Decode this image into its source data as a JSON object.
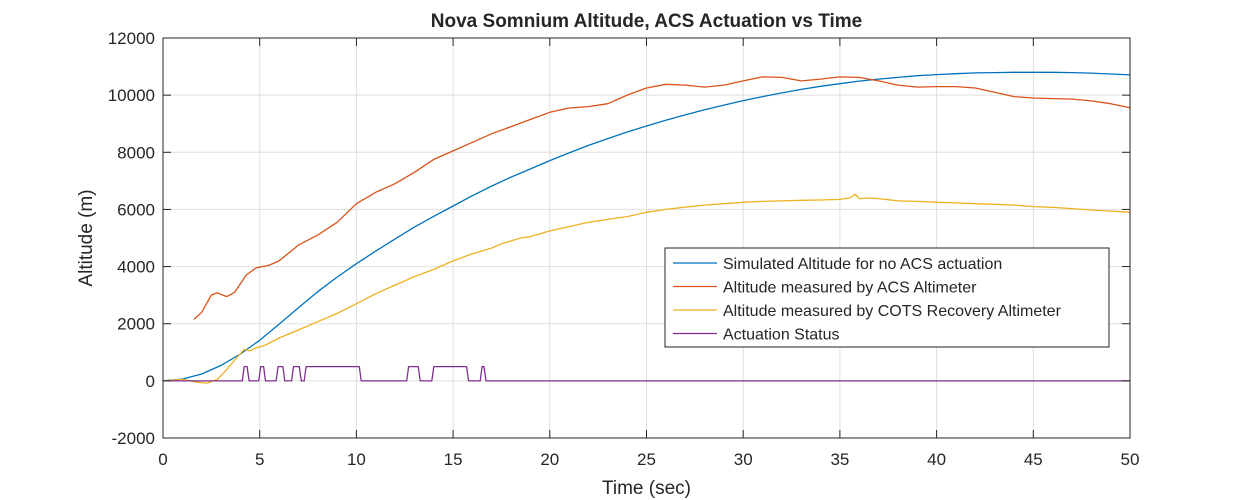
{
  "chart_data": {
    "type": "line",
    "title": "Nova Somnium Altitude, ACS Actuation vs Time",
    "xlabel": "Time (sec)",
    "ylabel": "Altitude (m)",
    "xlim": [
      0,
      50
    ],
    "ylim": [
      -2000,
      12000
    ],
    "xticks": [
      0,
      5,
      10,
      15,
      20,
      25,
      30,
      35,
      40,
      45,
      50
    ],
    "yticks": [
      -2000,
      0,
      2000,
      4000,
      6000,
      8000,
      10000,
      12000
    ],
    "xtick_labels": [
      "0",
      "5",
      "10",
      "15",
      "20",
      "25",
      "30",
      "35",
      "40",
      "45",
      "50"
    ],
    "ytick_labels": [
      "-2000",
      "0",
      "2000",
      "4000",
      "6000",
      "8000",
      "10000",
      "12000"
    ],
    "grid": true,
    "legend_position": "right-center",
    "series": [
      {
        "name": "Simulated Altitude for no ACS actuation",
        "color": "#0072BD",
        "points": [
          [
            0,
            0
          ],
          [
            1,
            60
          ],
          [
            2,
            240
          ],
          [
            3,
            540
          ],
          [
            4,
            940
          ],
          [
            5,
            1420
          ],
          [
            6,
            1980
          ],
          [
            7,
            2560
          ],
          [
            8,
            3120
          ],
          [
            9,
            3630
          ],
          [
            10,
            4100
          ],
          [
            11,
            4540
          ],
          [
            12,
            4970
          ],
          [
            13,
            5380
          ],
          [
            14,
            5760
          ],
          [
            15,
            6120
          ],
          [
            16,
            6480
          ],
          [
            17,
            6820
          ],
          [
            18,
            7130
          ],
          [
            19,
            7420
          ],
          [
            20,
            7710
          ],
          [
            21,
            7980
          ],
          [
            22,
            8240
          ],
          [
            23,
            8480
          ],
          [
            24,
            8710
          ],
          [
            25,
            8920
          ],
          [
            26,
            9120
          ],
          [
            27,
            9310
          ],
          [
            28,
            9490
          ],
          [
            29,
            9650
          ],
          [
            30,
            9810
          ],
          [
            31,
            9950
          ],
          [
            32,
            10080
          ],
          [
            33,
            10200
          ],
          [
            34,
            10310
          ],
          [
            35,
            10400
          ],
          [
            36,
            10490
          ],
          [
            37,
            10560
          ],
          [
            38,
            10620
          ],
          [
            39,
            10680
          ],
          [
            40,
            10720
          ],
          [
            41,
            10750
          ],
          [
            42,
            10780
          ],
          [
            43,
            10790
          ],
          [
            44,
            10800
          ],
          [
            45,
            10800
          ],
          [
            46,
            10800
          ],
          [
            47,
            10790
          ],
          [
            48,
            10770
          ],
          [
            49,
            10740
          ],
          [
            50,
            10710
          ]
        ]
      },
      {
        "name": "Altitude measured by ACS Altimeter",
        "color": "#D95319",
        "points": [
          [
            1.6,
            2150
          ],
          [
            2,
            2400
          ],
          [
            2.5,
            3000
          ],
          [
            2.8,
            3080
          ],
          [
            3.3,
            2950
          ],
          [
            3.7,
            3100
          ],
          [
            4.3,
            3700
          ],
          [
            4.8,
            3950
          ],
          [
            5.5,
            4050
          ],
          [
            6,
            4200
          ],
          [
            7,
            4750
          ],
          [
            8,
            5100
          ],
          [
            9,
            5550
          ],
          [
            10,
            6200
          ],
          [
            11,
            6600
          ],
          [
            12,
            6900
          ],
          [
            13,
            7300
          ],
          [
            14,
            7750
          ],
          [
            15,
            8050
          ],
          [
            16,
            8350
          ],
          [
            17,
            8650
          ],
          [
            18,
            8900
          ],
          [
            19,
            9150
          ],
          [
            20,
            9400
          ],
          [
            21,
            9550
          ],
          [
            22,
            9600
          ],
          [
            23,
            9700
          ],
          [
            24,
            10000
          ],
          [
            25,
            10250
          ],
          [
            26,
            10380
          ],
          [
            27,
            10350
          ],
          [
            28,
            10280
          ],
          [
            29,
            10350
          ],
          [
            30,
            10500
          ],
          [
            31,
            10640
          ],
          [
            32,
            10620
          ],
          [
            33,
            10500
          ],
          [
            34,
            10560
          ],
          [
            35,
            10640
          ],
          [
            36,
            10620
          ],
          [
            37,
            10500
          ],
          [
            38,
            10350
          ],
          [
            39,
            10280
          ],
          [
            40,
            10300
          ],
          [
            41,
            10300
          ],
          [
            42,
            10250
          ],
          [
            43,
            10100
          ],
          [
            44,
            9950
          ],
          [
            45,
            9900
          ],
          [
            46,
            9880
          ],
          [
            47,
            9860
          ],
          [
            48,
            9800
          ],
          [
            49,
            9700
          ],
          [
            50,
            9560
          ]
        ]
      },
      {
        "name": "Altitude measured by COTS Recovery Altimeter",
        "color": "#EDB120",
        "points": [
          [
            0,
            0
          ],
          [
            1,
            50
          ],
          [
            1.8,
            -50
          ],
          [
            2.3,
            -80
          ],
          [
            2.8,
            50
          ],
          [
            3.3,
            400
          ],
          [
            3.8,
            800
          ],
          [
            4.2,
            1100
          ],
          [
            4.5,
            1050
          ],
          [
            4.8,
            1150
          ],
          [
            5.3,
            1250
          ],
          [
            6,
            1500
          ],
          [
            7,
            1780
          ],
          [
            8,
            2070
          ],
          [
            9,
            2360
          ],
          [
            10,
            2700
          ],
          [
            11,
            3050
          ],
          [
            12,
            3350
          ],
          [
            13,
            3650
          ],
          [
            14,
            3900
          ],
          [
            15,
            4200
          ],
          [
            16,
            4450
          ],
          [
            17,
            4650
          ],
          [
            17.5,
            4800
          ],
          [
            18,
            4900
          ],
          [
            18.5,
            5000
          ],
          [
            19,
            5050
          ],
          [
            19.5,
            5150
          ],
          [
            20,
            5250
          ],
          [
            21,
            5400
          ],
          [
            22,
            5550
          ],
          [
            23,
            5650
          ],
          [
            24,
            5750
          ],
          [
            25,
            5900
          ],
          [
            26,
            6000
          ],
          [
            27,
            6080
          ],
          [
            28,
            6150
          ],
          [
            29,
            6200
          ],
          [
            30,
            6250
          ],
          [
            31,
            6280
          ],
          [
            32,
            6300
          ],
          [
            33,
            6320
          ],
          [
            34,
            6330
          ],
          [
            35,
            6350
          ],
          [
            35.5,
            6400
          ],
          [
            35.8,
            6530
          ],
          [
            36,
            6380
          ],
          [
            36.5,
            6400
          ],
          [
            37,
            6380
          ],
          [
            38,
            6300
          ],
          [
            39,
            6280
          ],
          [
            40,
            6250
          ],
          [
            41,
            6230
          ],
          [
            42,
            6200
          ],
          [
            43,
            6180
          ],
          [
            44,
            6150
          ],
          [
            45,
            6100
          ],
          [
            46,
            6070
          ],
          [
            47,
            6030
          ],
          [
            48,
            5980
          ],
          [
            49,
            5940
          ],
          [
            50,
            5900
          ]
        ]
      },
      {
        "name": "Actuation Status",
        "color": "#7E2F8E",
        "points": [
          [
            0,
            0
          ],
          [
            4.1,
            0
          ],
          [
            4.2,
            500
          ],
          [
            4.35,
            500
          ],
          [
            4.45,
            0
          ],
          [
            4.95,
            0
          ],
          [
            5.05,
            500
          ],
          [
            5.2,
            500
          ],
          [
            5.3,
            0
          ],
          [
            5.85,
            0
          ],
          [
            5.95,
            500
          ],
          [
            6.2,
            500
          ],
          [
            6.3,
            0
          ],
          [
            6.65,
            0
          ],
          [
            6.75,
            500
          ],
          [
            7.05,
            500
          ],
          [
            7.15,
            0
          ],
          [
            7.3,
            0
          ],
          [
            7.4,
            500
          ],
          [
            10.15,
            500
          ],
          [
            10.25,
            0
          ],
          [
            12.6,
            0
          ],
          [
            12.7,
            500
          ],
          [
            13.2,
            500
          ],
          [
            13.3,
            0
          ],
          [
            13.9,
            0
          ],
          [
            14,
            500
          ],
          [
            15.7,
            500
          ],
          [
            15.8,
            0
          ],
          [
            16.4,
            0
          ],
          [
            16.5,
            500
          ],
          [
            16.6,
            500
          ],
          [
            16.7,
            0
          ],
          [
            50,
            0
          ]
        ]
      }
    ]
  }
}
